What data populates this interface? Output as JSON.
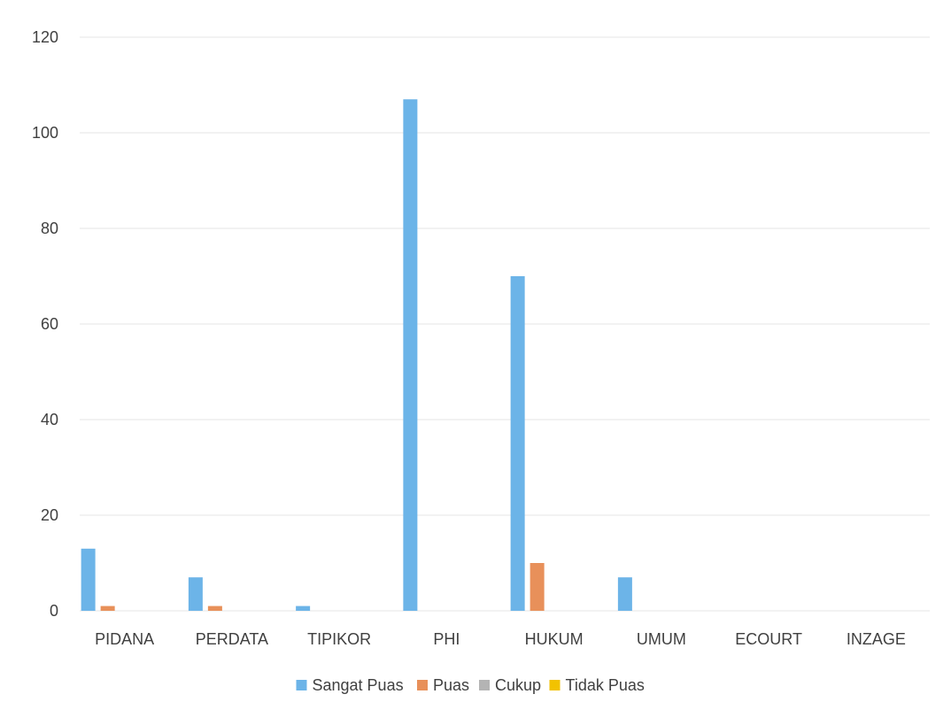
{
  "chart_data": {
    "type": "bar",
    "categories": [
      "PIDANA",
      "PERDATA",
      "TIPIKOR",
      "PHI",
      "HUKUM",
      "UMUM",
      "ECOURT",
      "INZAGE"
    ],
    "series": [
      {
        "name": "Sangat Puas",
        "values": [
          13,
          7,
          1,
          107,
          70,
          7,
          0,
          0
        ],
        "color": "#6cb4e8"
      },
      {
        "name": "Puas",
        "values": [
          1,
          1,
          0,
          0,
          10,
          0,
          0,
          0
        ],
        "color": "#e8905a"
      },
      {
        "name": "Cukup",
        "values": [
          0,
          0,
          0,
          0,
          0,
          0,
          0,
          0
        ],
        "color": "#b4b4b4"
      },
      {
        "name": "Tidak Puas",
        "values": [
          0,
          0,
          0,
          0,
          0,
          0,
          0,
          0
        ],
        "color": "#f2c200"
      }
    ],
    "ylim": [
      0,
      120
    ],
    "yticks": [
      0,
      20,
      40,
      60,
      80,
      100,
      120
    ],
    "grid": true,
    "legend": "bottom",
    "title": "",
    "xlabel": "",
    "ylabel": ""
  }
}
